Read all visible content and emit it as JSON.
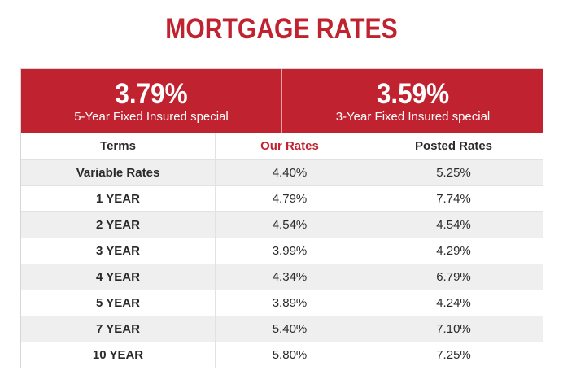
{
  "page_title": "MORTGAGE RATES",
  "specials": [
    {
      "rate": "3.79%",
      "label": "5-Year Fixed Insured special"
    },
    {
      "rate": "3.59%",
      "label": "3-Year Fixed Insured special"
    }
  ],
  "table": {
    "headers": [
      "Terms",
      "Our Rates",
      "Posted Rates"
    ],
    "rows": [
      {
        "term": "Variable Rates",
        "our_rate": "4.40%",
        "posted_rate": "5.25%"
      },
      {
        "term": "1 YEAR",
        "our_rate": "4.79%",
        "posted_rate": "7.74%"
      },
      {
        "term": "2 YEAR",
        "our_rate": "4.54%",
        "posted_rate": "4.54%"
      },
      {
        "term": "3 YEAR",
        "our_rate": "3.99%",
        "posted_rate": "4.29%"
      },
      {
        "term": "4 YEAR",
        "our_rate": "4.34%",
        "posted_rate": "6.79%"
      },
      {
        "term": "5 YEAR",
        "our_rate": "3.89%",
        "posted_rate": "4.24%"
      },
      {
        "term": "7 YEAR",
        "our_rate": "5.40%",
        "posted_rate": "7.10%"
      },
      {
        "term": "10 YEAR",
        "our_rate": "5.80%",
        "posted_rate": "7.25%"
      }
    ]
  },
  "colors": {
    "accent": "#c0232f",
    "row_shade": "#efefef",
    "text": "#2a2a2a"
  }
}
